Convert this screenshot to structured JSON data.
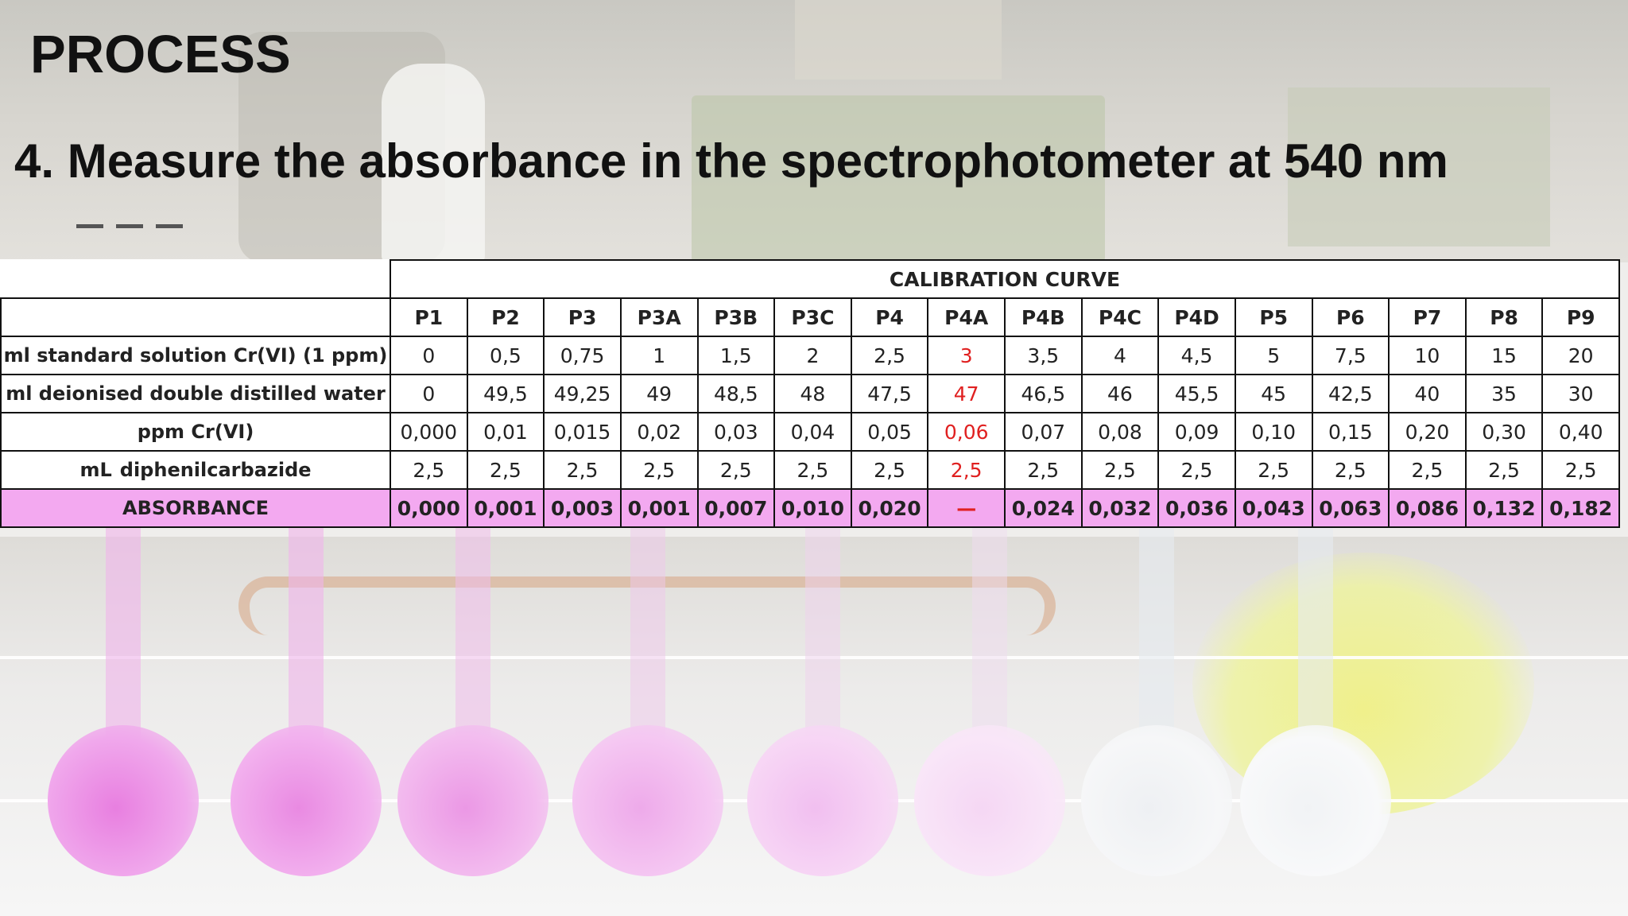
{
  "header": {
    "title": "PROCESS",
    "subtitle": "4. Measure the absorbance in the spectrophotometer at 540 nm"
  },
  "table": {
    "caption": "CALIBRATION CURVE",
    "columns": [
      "P1",
      "P2",
      "P3",
      "P3A",
      "P3B",
      "P3C",
      "P4",
      "P4A",
      "P4B",
      "P4C",
      "P4D",
      "P5",
      "P6",
      "P7",
      "P8",
      "P9"
    ],
    "highlight_color": "#e02020",
    "absorbance_row_color": "#f3a9f0",
    "rows": [
      {
        "label": "ml standard solution Cr(VI) (1 ppm)",
        "values": [
          "0",
          "0,5",
          "0,75",
          "1",
          "1,5",
          "2",
          "2,5",
          "3",
          "3,5",
          "4",
          "4,5",
          "5",
          "7,5",
          "10",
          "15",
          "20"
        ]
      },
      {
        "label": "ml deionised double distilled water",
        "values": [
          "0",
          "49,5",
          "49,25",
          "49",
          "48,5",
          "48",
          "47,5",
          "47",
          "46,5",
          "46",
          "45,5",
          "45",
          "42,5",
          "40",
          "35",
          "30"
        ]
      },
      {
        "label": "ppm Cr(VI)",
        "values": [
          "0,000",
          "0,01",
          "0,015",
          "0,02",
          "0,03",
          "0,04",
          "0,05",
          "0,06",
          "0,07",
          "0,08",
          "0,09",
          "0,10",
          "0,15",
          "0,20",
          "0,30",
          "0,40"
        ]
      },
      {
        "label_prefix": "mL",
        "label": "diphenilcarbazide",
        "values": [
          "2,5",
          "2,5",
          "2,5",
          "2,5",
          "2,5",
          "2,5",
          "2,5",
          "2,5",
          "2,5",
          "2,5",
          "2,5",
          "2,5",
          "2,5",
          "2,5",
          "2,5",
          "2,5"
        ]
      },
      {
        "label": "ABSORBANCE",
        "values": [
          "0,000",
          "0,001",
          "0,003",
          "0,001",
          "0,007",
          "0,010",
          "0,020",
          "—",
          "0,024",
          "0,032",
          "0,036",
          "0,043",
          "0,063",
          "0,086",
          "0,132",
          "0,182"
        ]
      }
    ]
  }
}
